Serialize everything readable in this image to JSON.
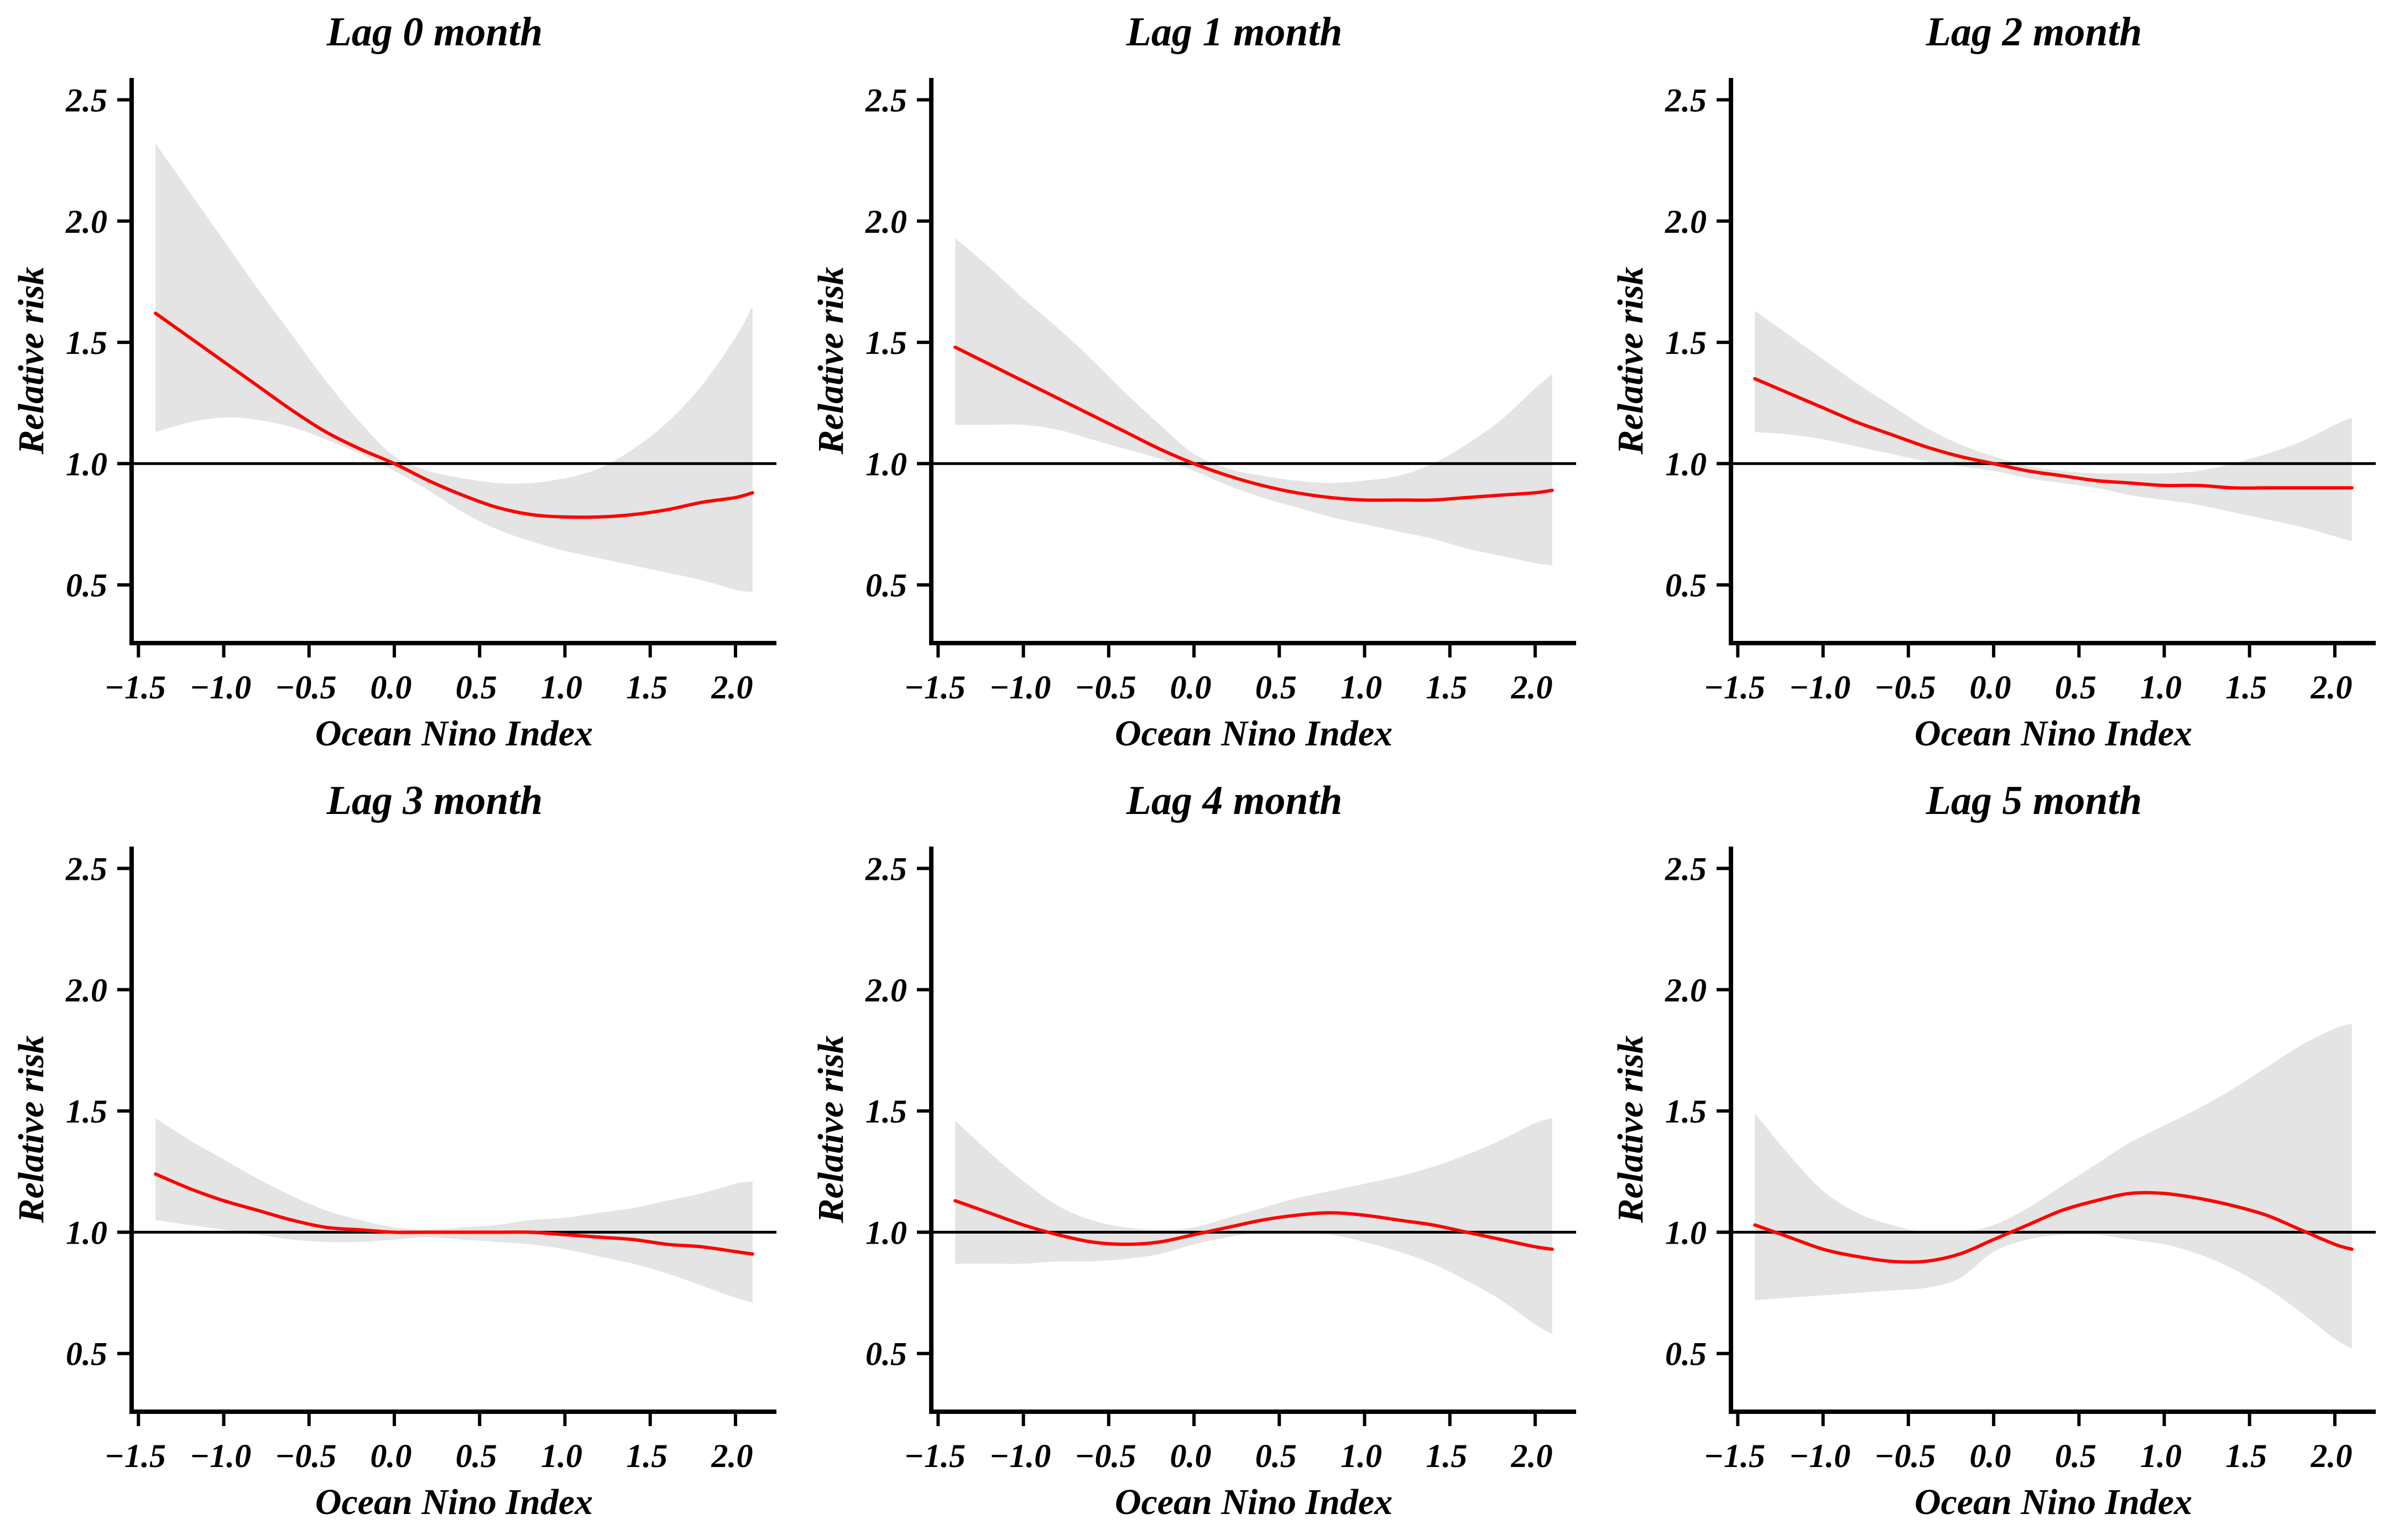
{
  "figure": {
    "ylabel": "Relative risk",
    "xlabel": "Ocean Nino Index",
    "x_tick_labels": [
      "−1.5",
      "−1.0",
      "−0.5",
      "0.0",
      "0.5",
      "1.0",
      "1.5",
      "2.0"
    ],
    "x_tick_values": [
      -1.5,
      -1.0,
      -0.5,
      0.0,
      0.5,
      1.0,
      1.5,
      2.0
    ],
    "y_tick_labels": [
      "0.5",
      "1.0",
      "1.5",
      "2.0",
      "2.5"
    ],
    "y_tick_values": [
      0.5,
      1.0,
      1.5,
      2.0,
      2.5
    ],
    "reference_line_y": 1.0,
    "colors": {
      "curve": "#ff0000",
      "band": "#e4e4e4",
      "axis": "#000000",
      "reference_line": "#000000",
      "background": "#ffffff"
    }
  },
  "chart_data": [
    {
      "type": "line",
      "title": "Lag 0 month",
      "xlabel": "Ocean Nino Index",
      "ylabel": "Relative risk",
      "xlim": [
        -1.54,
        2.24
      ],
      "ylim": [
        0.26,
        2.59
      ],
      "grid": false,
      "legend": "none",
      "x": [
        -1.4,
        -1.2,
        -1.0,
        -0.8,
        -0.6,
        -0.4,
        -0.2,
        0.0,
        0.2,
        0.4,
        0.6,
        0.8,
        1.0,
        1.2,
        1.4,
        1.6,
        1.8,
        2.0,
        2.1
      ],
      "y": [
        1.62,
        1.52,
        1.42,
        1.32,
        1.22,
        1.13,
        1.06,
        1.0,
        0.93,
        0.87,
        0.82,
        0.79,
        0.78,
        0.78,
        0.79,
        0.81,
        0.84,
        0.86,
        0.88
      ],
      "ci_upper": [
        2.32,
        2.12,
        1.92,
        1.72,
        1.53,
        1.34,
        1.17,
        1.03,
        0.97,
        0.94,
        0.92,
        0.92,
        0.94,
        0.98,
        1.06,
        1.17,
        1.32,
        1.52,
        1.65
      ],
      "ci_lower": [
        1.13,
        1.17,
        1.19,
        1.18,
        1.15,
        1.1,
        1.04,
        0.97,
        0.89,
        0.8,
        0.73,
        0.68,
        0.64,
        0.61,
        0.58,
        0.55,
        0.52,
        0.48,
        0.47
      ]
    },
    {
      "type": "line",
      "title": "Lag 1 month",
      "xlabel": "Ocean Nino Index",
      "ylabel": "Relative risk",
      "xlim": [
        -1.54,
        2.24
      ],
      "ylim": [
        0.26,
        2.59
      ],
      "grid": false,
      "legend": "none",
      "x": [
        -1.4,
        -1.2,
        -1.0,
        -0.8,
        -0.6,
        -0.4,
        -0.2,
        0.0,
        0.2,
        0.4,
        0.6,
        0.8,
        1.0,
        1.2,
        1.4,
        1.6,
        1.8,
        2.0,
        2.1
      ],
      "y": [
        1.48,
        1.41,
        1.34,
        1.27,
        1.2,
        1.13,
        1.06,
        1.0,
        0.95,
        0.91,
        0.88,
        0.86,
        0.85,
        0.85,
        0.85,
        0.86,
        0.87,
        0.88,
        0.89
      ],
      "ci_upper": [
        1.93,
        1.81,
        1.68,
        1.56,
        1.43,
        1.29,
        1.16,
        1.04,
        0.98,
        0.95,
        0.93,
        0.92,
        0.93,
        0.95,
        1.0,
        1.08,
        1.18,
        1.31,
        1.37
      ],
      "ci_lower": [
        1.16,
        1.16,
        1.16,
        1.14,
        1.1,
        1.06,
        1.02,
        0.97,
        0.91,
        0.86,
        0.82,
        0.78,
        0.75,
        0.72,
        0.69,
        0.65,
        0.62,
        0.59,
        0.58
      ]
    },
    {
      "type": "line",
      "title": "Lag 2 month",
      "xlabel": "Ocean Nino Index",
      "ylabel": "Relative risk",
      "xlim": [
        -1.54,
        2.24
      ],
      "ylim": [
        0.26,
        2.59
      ],
      "grid": false,
      "legend": "none",
      "x": [
        -1.4,
        -1.2,
        -1.0,
        -0.8,
        -0.6,
        -0.4,
        -0.2,
        0.0,
        0.2,
        0.4,
        0.6,
        0.8,
        1.0,
        1.2,
        1.4,
        1.6,
        1.8,
        2.0,
        2.1
      ],
      "y": [
        1.35,
        1.29,
        1.23,
        1.17,
        1.12,
        1.07,
        1.03,
        1.0,
        0.97,
        0.95,
        0.93,
        0.92,
        0.91,
        0.91,
        0.9,
        0.9,
        0.9,
        0.9,
        0.9
      ],
      "ci_upper": [
        1.63,
        1.53,
        1.43,
        1.33,
        1.24,
        1.15,
        1.08,
        1.03,
        0.99,
        0.97,
        0.96,
        0.96,
        0.96,
        0.97,
        1.0,
        1.04,
        1.09,
        1.16,
        1.19
      ],
      "ci_lower": [
        1.13,
        1.12,
        1.1,
        1.07,
        1.04,
        1.01,
        0.99,
        0.97,
        0.94,
        0.92,
        0.9,
        0.87,
        0.85,
        0.83,
        0.8,
        0.77,
        0.74,
        0.7,
        0.68
      ]
    },
    {
      "type": "line",
      "title": "Lag 3 month",
      "xlabel": "Ocean Nino Index",
      "ylabel": "Relative risk",
      "xlim": [
        -1.54,
        2.24
      ],
      "ylim": [
        0.26,
        2.59
      ],
      "grid": false,
      "legend": "none",
      "x": [
        -1.4,
        -1.2,
        -1.0,
        -0.8,
        -0.6,
        -0.4,
        -0.2,
        0.0,
        0.2,
        0.4,
        0.6,
        0.8,
        1.0,
        1.2,
        1.4,
        1.6,
        1.8,
        2.0,
        2.1
      ],
      "y": [
        1.24,
        1.18,
        1.13,
        1.09,
        1.05,
        1.02,
        1.01,
        1.0,
        1.0,
        1.0,
        1.0,
        1.0,
        0.99,
        0.98,
        0.97,
        0.95,
        0.94,
        0.92,
        0.91
      ],
      "ci_upper": [
        1.47,
        1.38,
        1.3,
        1.22,
        1.15,
        1.09,
        1.05,
        1.02,
        1.01,
        1.02,
        1.03,
        1.05,
        1.06,
        1.08,
        1.1,
        1.13,
        1.16,
        1.2,
        1.21
      ],
      "ci_lower": [
        1.05,
        1.03,
        1.01,
        0.99,
        0.97,
        0.96,
        0.96,
        0.97,
        0.98,
        0.97,
        0.96,
        0.95,
        0.93,
        0.9,
        0.87,
        0.83,
        0.78,
        0.73,
        0.71
      ]
    },
    {
      "type": "line",
      "title": "Lag 4 month",
      "xlabel": "Ocean Nino Index",
      "ylabel": "Relative risk",
      "xlim": [
        -1.54,
        2.24
      ],
      "ylim": [
        0.26,
        2.59
      ],
      "grid": false,
      "legend": "none",
      "x": [
        -1.4,
        -1.2,
        -1.0,
        -0.8,
        -0.6,
        -0.4,
        -0.2,
        0.0,
        0.2,
        0.4,
        0.6,
        0.8,
        1.0,
        1.2,
        1.4,
        1.6,
        1.8,
        2.0,
        2.1
      ],
      "y": [
        1.13,
        1.08,
        1.03,
        0.99,
        0.96,
        0.95,
        0.96,
        0.99,
        1.02,
        1.05,
        1.07,
        1.08,
        1.07,
        1.05,
        1.03,
        1.0,
        0.97,
        0.94,
        0.93
      ],
      "ci_upper": [
        1.46,
        1.33,
        1.21,
        1.11,
        1.05,
        1.02,
        1.01,
        1.02,
        1.06,
        1.1,
        1.14,
        1.17,
        1.2,
        1.23,
        1.27,
        1.32,
        1.38,
        1.45,
        1.47
      ],
      "ci_lower": [
        0.87,
        0.87,
        0.87,
        0.88,
        0.88,
        0.89,
        0.91,
        0.95,
        0.98,
        1.0,
        1.0,
        0.99,
        0.96,
        0.92,
        0.87,
        0.8,
        0.72,
        0.62,
        0.58
      ]
    },
    {
      "type": "line",
      "title": "Lag 5 month",
      "xlabel": "Ocean Nino Index",
      "ylabel": "Relative risk",
      "xlim": [
        -1.54,
        2.24
      ],
      "ylim": [
        0.26,
        2.59
      ],
      "grid": false,
      "legend": "none",
      "x": [
        -1.4,
        -1.2,
        -1.0,
        -0.8,
        -0.6,
        -0.4,
        -0.2,
        0.0,
        0.2,
        0.4,
        0.6,
        0.8,
        1.0,
        1.2,
        1.4,
        1.6,
        1.8,
        2.0,
        2.1
      ],
      "y": [
        1.03,
        0.98,
        0.93,
        0.9,
        0.88,
        0.88,
        0.91,
        0.97,
        1.03,
        1.09,
        1.13,
        1.16,
        1.16,
        1.14,
        1.11,
        1.07,
        1.01,
        0.95,
        0.93
      ],
      "ci_upper": [
        1.49,
        1.32,
        1.17,
        1.08,
        1.03,
        1.0,
        1.0,
        1.03,
        1.1,
        1.19,
        1.28,
        1.37,
        1.44,
        1.51,
        1.59,
        1.68,
        1.77,
        1.84,
        1.86
      ],
      "ci_lower": [
        0.72,
        0.73,
        0.74,
        0.75,
        0.76,
        0.77,
        0.81,
        0.92,
        0.97,
        0.99,
        0.99,
        0.97,
        0.95,
        0.91,
        0.85,
        0.77,
        0.67,
        0.56,
        0.52
      ]
    }
  ]
}
